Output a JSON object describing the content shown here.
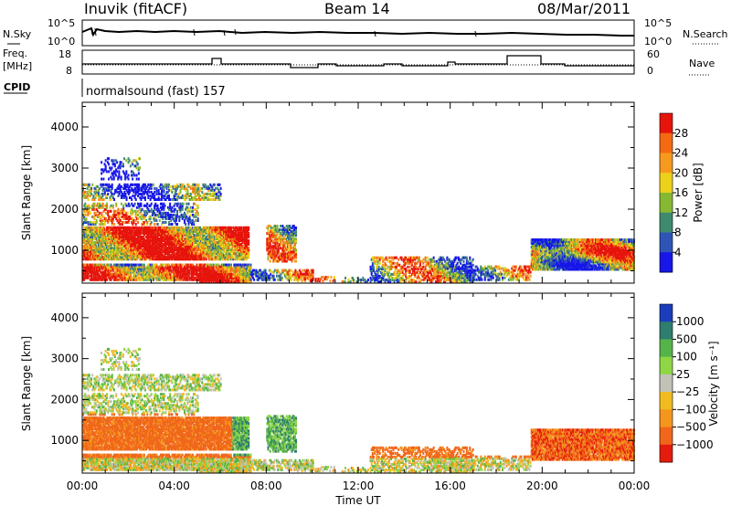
{
  "header": {
    "station": "Inuvik (fitACF)",
    "beam": "Beam 14",
    "date": "08/Mar/2011"
  },
  "noise_panel": {
    "left_label": "N.Sky",
    "right_label": "N.Search",
    "left_ticks": [
      "10^5",
      "10^0"
    ],
    "right_ticks": [
      "10^5",
      "10^0"
    ]
  },
  "freq_panel": {
    "left_label_line1": "Freq.",
    "left_label_line2": "[MHz]",
    "right_label": "Nave",
    "left_ticks": [
      "18",
      "8"
    ],
    "right_ticks": [
      "60",
      "0"
    ]
  },
  "cpid": {
    "label": "CPID",
    "program": "normalsound (fast) 157"
  },
  "chart_data": [
    {
      "type": "heatmap",
      "quantity": "Power",
      "ylabel": "Slant Range [km]",
      "yticks": [
        "1000",
        "2000",
        "3000",
        "4000"
      ],
      "ylim": [
        200,
        4600
      ],
      "xlim": [
        "00:00",
        "24:00"
      ],
      "colorbar_label": "Power [dB]",
      "colorbar_ticks": [
        "4",
        "8",
        "12",
        "16",
        "20",
        "24",
        "28"
      ],
      "colorbar_range": [
        0,
        32
      ],
      "colors": [
        "#1717e8",
        "#2e55b5",
        "#3e8a6f",
        "#86b832",
        "#ecd21a",
        "#f59a1e",
        "#f46a12",
        "#e6150c"
      ]
    },
    {
      "type": "heatmap",
      "quantity": "Velocity",
      "ylabel": "Slant Range [km]",
      "yticks": [
        "1000",
        "2000",
        "3000",
        "4000"
      ],
      "ylim": [
        200,
        4600
      ],
      "xlim": [
        "00:00",
        "24:00"
      ],
      "xlabel": "Time UT",
      "xticks": [
        "00:00",
        "04:00",
        "08:00",
        "12:00",
        "16:00",
        "20:00",
        "00:00"
      ],
      "colorbar_label": "Velocity [m s⁻¹]",
      "colorbar_ticks": [
        "1000",
        "500",
        "100",
        "25",
        "−25",
        "−100",
        "−500",
        "−1000"
      ],
      "colors": [
        "#1c3dbb",
        "#2e7d6e",
        "#56b34a",
        "#8fd645",
        "#c2c2b6",
        "#f1bb20",
        "#f4961c",
        "#f0671b",
        "#e41c0d"
      ]
    }
  ]
}
